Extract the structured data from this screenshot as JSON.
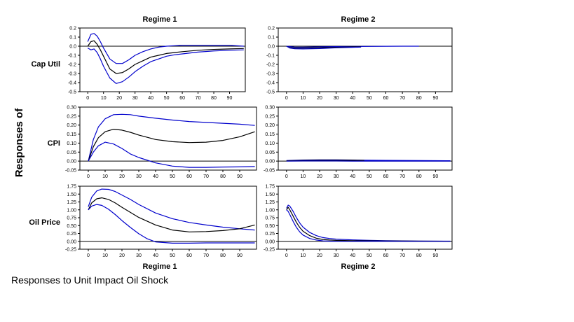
{
  "figure": {
    "y_axis_title": "Responses of",
    "caption": "Responses to Unit Impact Oil Shock",
    "col_titles_top": [
      "Regime 1",
      "Regime 2"
    ],
    "col_titles_bottom": [
      "Regime 1",
      "Regime 2"
    ],
    "row_labels": [
      "Cap Util",
      "CPI",
      "Oil Price"
    ],
    "colors": {
      "point_estimate": "#000000",
      "bands": "#0000cc",
      "zero_line": "#000000"
    }
  },
  "chart_data": [
    {
      "type": "line",
      "row_label": "Cap Util",
      "column": "Regime 1",
      "xlim": [
        -5,
        100
      ],
      "ylim": [
        -0.5,
        0.2
      ],
      "xticks": [
        0,
        10,
        20,
        30,
        40,
        50,
        60,
        70,
        80,
        90
      ],
      "yticks": [
        -0.5,
        -0.4,
        -0.3,
        -0.2,
        -0.1,
        0.0,
        0.1,
        0.2
      ],
      "ytick_labels": [
        "-0.5",
        "-0.4",
        "-0.3",
        "-0.2",
        "-0.1",
        "0.0",
        "0.1",
        "0.2"
      ],
      "series": [
        {
          "role": "upper",
          "x": [
            0,
            2,
            4,
            6,
            8,
            10,
            14,
            18,
            22,
            26,
            30,
            35,
            40,
            45,
            50,
            55,
            60,
            70,
            80,
            90,
            99
          ],
          "values": [
            0.05,
            0.13,
            0.14,
            0.11,
            0.05,
            -0.02,
            -0.14,
            -0.19,
            -0.19,
            -0.15,
            -0.1,
            -0.06,
            -0.03,
            -0.01,
            0.0,
            0.005,
            0.01,
            0.01,
            0.01,
            0.01,
            0.0
          ]
        },
        {
          "role": "estimate",
          "x": [
            0,
            2,
            4,
            6,
            8,
            10,
            14,
            18,
            22,
            26,
            30,
            35,
            40,
            45,
            50,
            55,
            60,
            70,
            80,
            90,
            99
          ],
          "values": [
            0.0,
            0.05,
            0.06,
            0.02,
            -0.04,
            -0.11,
            -0.25,
            -0.3,
            -0.29,
            -0.25,
            -0.2,
            -0.16,
            -0.12,
            -0.1,
            -0.08,
            -0.07,
            -0.06,
            -0.045,
            -0.035,
            -0.03,
            -0.025
          ]
        },
        {
          "role": "lower",
          "x": [
            0,
            2,
            4,
            6,
            8,
            10,
            14,
            18,
            22,
            26,
            30,
            35,
            40,
            45,
            50,
            55,
            60,
            70,
            80,
            90,
            99
          ],
          "values": [
            -0.02,
            -0.04,
            -0.03,
            -0.07,
            -0.14,
            -0.22,
            -0.35,
            -0.41,
            -0.39,
            -0.34,
            -0.28,
            -0.22,
            -0.17,
            -0.14,
            -0.11,
            -0.095,
            -0.085,
            -0.065,
            -0.052,
            -0.045,
            -0.04
          ]
        }
      ]
    },
    {
      "type": "line",
      "row_label": "Cap Util",
      "column": "Regime 2",
      "xlim": [
        -5,
        100
      ],
      "ylim": [
        -0.5,
        0.2
      ],
      "xticks": [
        0,
        10,
        20,
        30,
        40,
        50,
        60,
        70,
        80,
        90
      ],
      "yticks": [
        -0.5,
        -0.4,
        -0.3,
        -0.2,
        -0.1,
        0.0,
        0.1,
        0.2
      ],
      "ytick_labels": [
        "-0.5",
        "-0.4",
        "-0.3",
        "-0.2",
        "-0.1",
        "0.0",
        "0.1",
        "0.2"
      ],
      "series": [
        {
          "role": "upper",
          "x": [
            0,
            2,
            5,
            10,
            20,
            30,
            40,
            50,
            60,
            70,
            80
          ],
          "values": [
            0.0,
            -0.005,
            -0.01,
            -0.01,
            -0.008,
            -0.005,
            -0.003,
            -0.002,
            -0.001,
            0.0,
            0.0
          ]
        },
        {
          "role": "estimate",
          "x": [
            0,
            2,
            5,
            10,
            20,
            30,
            40,
            45
          ],
          "values": [
            0.0,
            -0.015,
            -0.02,
            -0.02,
            -0.017,
            -0.012,
            -0.008,
            -0.006
          ]
        },
        {
          "role": "lower",
          "x": [
            0,
            2,
            5,
            10,
            20,
            30,
            40,
            45
          ],
          "values": [
            0.0,
            -0.02,
            -0.028,
            -0.03,
            -0.026,
            -0.018,
            -0.012,
            -0.01
          ]
        }
      ]
    },
    {
      "type": "line",
      "row_label": "CPI",
      "column": "Regime 1",
      "xlim": [
        -5,
        100
      ],
      "ylim": [
        -0.05,
        0.3
      ],
      "xticks": [
        0,
        10,
        20,
        30,
        40,
        50,
        60,
        70,
        80,
        90
      ],
      "yticks": [
        -0.05,
        0.0,
        0.05,
        0.1,
        0.15,
        0.2,
        0.25,
        0.3
      ],
      "ytick_labels": [
        "-0.05",
        "0.00",
        "0.05",
        "0.10",
        "0.15",
        "0.20",
        "0.25",
        "0.30"
      ],
      "series": [
        {
          "role": "upper",
          "x": [
            0,
            3,
            6,
            10,
            15,
            20,
            25,
            30,
            40,
            50,
            60,
            70,
            80,
            90,
            99
          ],
          "values": [
            0.0,
            0.12,
            0.19,
            0.235,
            0.258,
            0.26,
            0.258,
            0.25,
            0.238,
            0.228,
            0.22,
            0.215,
            0.21,
            0.205,
            0.198
          ]
        },
        {
          "role": "estimate",
          "x": [
            0,
            3,
            6,
            10,
            15,
            20,
            25,
            30,
            40,
            50,
            60,
            70,
            80,
            90,
            99
          ],
          "values": [
            0.0,
            0.08,
            0.13,
            0.163,
            0.177,
            0.172,
            0.16,
            0.145,
            0.12,
            0.108,
            0.103,
            0.105,
            0.115,
            0.135,
            0.163
          ]
        },
        {
          "role": "lower",
          "x": [
            0,
            3,
            6,
            10,
            15,
            20,
            25,
            30,
            40,
            50,
            60,
            70,
            80,
            90,
            99
          ],
          "values": [
            0.0,
            0.05,
            0.085,
            0.105,
            0.095,
            0.07,
            0.04,
            0.02,
            -0.01,
            -0.028,
            -0.035,
            -0.035,
            -0.033,
            -0.032,
            -0.03
          ]
        }
      ]
    },
    {
      "type": "line",
      "row_label": "CPI",
      "column": "Regime 2",
      "xlim": [
        -5,
        100
      ],
      "ylim": [
        -0.05,
        0.3
      ],
      "xticks": [
        0,
        10,
        20,
        30,
        40,
        50,
        60,
        70,
        80,
        90
      ],
      "yticks": [
        -0.05,
        0.0,
        0.05,
        0.1,
        0.15,
        0.2,
        0.25,
        0.3
      ],
      "ytick_labels": [
        "-0.05",
        "0.00",
        "0.05",
        "0.10",
        "0.15",
        "0.20",
        "0.25",
        "0.30"
      ],
      "series": [
        {
          "role": "upper",
          "x": [
            0,
            10,
            20,
            30,
            40,
            47,
            60,
            80,
            99
          ],
          "values": [
            0.003,
            0.006,
            0.007,
            0.007,
            0.006,
            0.005,
            0.004,
            0.003,
            0.002
          ]
        },
        {
          "role": "estimate",
          "x": [
            0,
            10,
            20,
            30,
            40,
            47
          ],
          "values": [
            0.002,
            0.004,
            0.005,
            0.005,
            0.005,
            0.004
          ]
        },
        {
          "role": "lower",
          "x": [
            0,
            10,
            20,
            30,
            40,
            60,
            80,
            99
          ],
          "values": [
            0.0,
            0.001,
            0.001,
            0.001,
            0.0,
            0.0,
            0.0,
            0.0
          ]
        }
      ]
    },
    {
      "type": "line",
      "row_label": "Oil Price",
      "column": "Regime 1",
      "xlim": [
        -5,
        100
      ],
      "ylim": [
        -0.25,
        1.75
      ],
      "xticks": [
        0,
        10,
        20,
        30,
        40,
        50,
        60,
        70,
        80,
        90
      ],
      "yticks": [
        -0.25,
        0.0,
        0.25,
        0.5,
        0.75,
        1.0,
        1.25,
        1.5,
        1.75
      ],
      "ytick_labels": [
        "-0.25",
        "0.00",
        "0.25",
        "0.50",
        "0.75",
        "1.00",
        "1.25",
        "1.50",
        "1.75"
      ],
      "series": [
        {
          "role": "upper",
          "x": [
            0,
            2,
            5,
            8,
            12,
            16,
            20,
            25,
            30,
            40,
            50,
            60,
            70,
            80,
            90,
            99
          ],
          "values": [
            1.1,
            1.4,
            1.6,
            1.66,
            1.65,
            1.58,
            1.47,
            1.33,
            1.17,
            0.9,
            0.72,
            0.6,
            0.52,
            0.45,
            0.4,
            0.36
          ]
        },
        {
          "role": "estimate",
          "x": [
            0,
            2,
            5,
            8,
            12,
            16,
            20,
            25,
            30,
            40,
            50,
            60,
            70,
            80,
            90,
            99
          ],
          "values": [
            1.0,
            1.22,
            1.35,
            1.38,
            1.33,
            1.22,
            1.08,
            0.92,
            0.76,
            0.52,
            0.36,
            0.3,
            0.31,
            0.34,
            0.4,
            0.52
          ]
        },
        {
          "role": "lower",
          "x": [
            0,
            2,
            5,
            8,
            12,
            16,
            20,
            25,
            30,
            35,
            40,
            50,
            60,
            70,
            80,
            90,
            99
          ],
          "values": [
            1.0,
            1.12,
            1.17,
            1.14,
            1.02,
            0.85,
            0.66,
            0.44,
            0.24,
            0.08,
            -0.02,
            -0.06,
            -0.06,
            -0.05,
            -0.05,
            -0.05,
            -0.05
          ]
        }
      ]
    },
    {
      "type": "line",
      "row_label": "Oil Price",
      "column": "Regime 2",
      "xlim": [
        -5,
        100
      ],
      "ylim": [
        -0.25,
        1.75
      ],
      "xticks": [
        0,
        10,
        20,
        30,
        40,
        50,
        60,
        70,
        80,
        90
      ],
      "yticks": [
        -0.25,
        0.0,
        0.25,
        0.5,
        0.75,
        1.0,
        1.25,
        1.5,
        1.75
      ],
      "ytick_labels": [
        "-0.25",
        "0.00",
        "0.25",
        "0.50",
        "0.75",
        "1.00",
        "1.25",
        "1.50",
        "1.75"
      ],
      "series": [
        {
          "role": "upper",
          "x": [
            0,
            1,
            2,
            4,
            6,
            8,
            10,
            14,
            18,
            22,
            26,
            30,
            40,
            50,
            60,
            70,
            80,
            99
          ],
          "values": [
            1.05,
            1.15,
            1.12,
            0.95,
            0.75,
            0.58,
            0.45,
            0.28,
            0.18,
            0.12,
            0.09,
            0.07,
            0.045,
            0.03,
            0.02,
            0.015,
            0.01,
            0.005
          ]
        },
        {
          "role": "estimate",
          "x": [
            0,
            1,
            2,
            4,
            6,
            8,
            10,
            14,
            18,
            22,
            26,
            30,
            40,
            50,
            60,
            70,
            80,
            99
          ],
          "values": [
            1.0,
            1.08,
            1.0,
            0.8,
            0.6,
            0.44,
            0.32,
            0.18,
            0.1,
            0.06,
            0.04,
            0.03,
            0.02,
            0.015,
            0.01,
            0.008,
            0.006,
            0.003
          ]
        },
        {
          "role": "lower",
          "x": [
            0,
            1,
            2,
            4,
            6,
            8,
            10,
            14,
            18,
            22,
            26,
            30,
            40,
            50,
            60,
            70,
            80,
            99
          ],
          "values": [
            1.0,
            0.95,
            0.85,
            0.63,
            0.44,
            0.3,
            0.2,
            0.09,
            0.04,
            0.015,
            0.005,
            0.0,
            0.0,
            0.0,
            0.0,
            0.0,
            0.0,
            0.0
          ]
        }
      ]
    }
  ]
}
